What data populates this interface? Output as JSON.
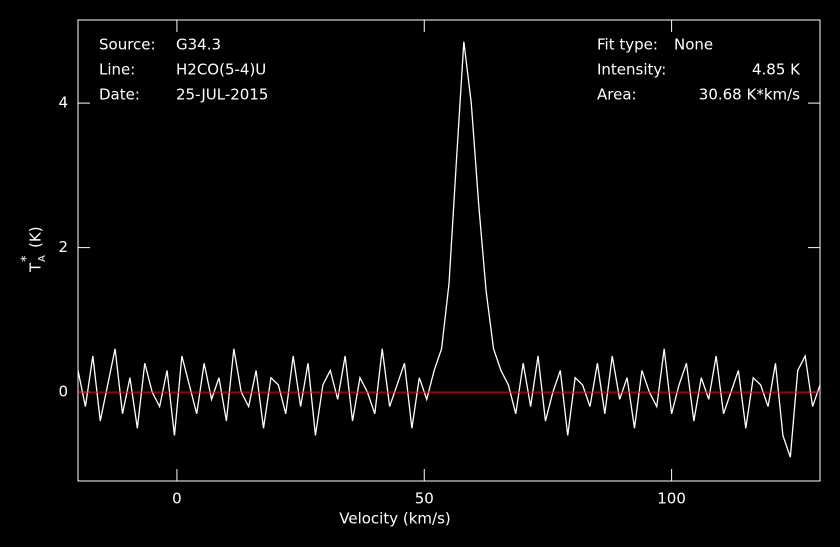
{
  "chart_data": {
    "type": "line",
    "xlabel": "Velocity (km/s)",
    "ylabel": {
      "symbol": "T",
      "sub": "A",
      "sup": "*",
      "unit": "(K)"
    },
    "annotations_left": [
      {
        "label": "Source:",
        "value": "G34.3"
      },
      {
        "label": "Line:",
        "value": "H2CO(5-4)U"
      },
      {
        "label": "Date:",
        "value": "25-JUL-2015"
      }
    ],
    "annotations_right": [
      {
        "label": "Fit type:",
        "value": "None"
      },
      {
        "label": "Intensity:",
        "value": "4.85 K"
      },
      {
        "label": "Area:",
        "value": "30.68 K*km/s"
      }
    ],
    "x": [
      -20,
      -18.5,
      -17,
      -15.5,
      -14,
      -12.5,
      -11,
      -9.5,
      -8,
      -6.5,
      -5,
      -3.5,
      -2,
      -0.5,
      1,
      2.5,
      4,
      5.5,
      7,
      8.5,
      10,
      11.5,
      13,
      14.5,
      16,
      17.5,
      19,
      20.5,
      22,
      23.5,
      25,
      26.5,
      28,
      29.5,
      31,
      32.5,
      34,
      35.5,
      37,
      38.5,
      40,
      41.5,
      43,
      44.5,
      46,
      47.5,
      49,
      50.5,
      52,
      53.5,
      55,
      56.5,
      58,
      59.5,
      61,
      62.5,
      64,
      65.5,
      67,
      68.5,
      70,
      71.5,
      73,
      74.5,
      76,
      77.5,
      79,
      80.5,
      82,
      83.5,
      85,
      86.5,
      88,
      89.5,
      91,
      92.5,
      94,
      95.5,
      97,
      98.5,
      100,
      101.5,
      103,
      104.5,
      106,
      107.5,
      109,
      110.5,
      112,
      113.5,
      115,
      116.5,
      118,
      119.5,
      121,
      122.5,
      124,
      125.5,
      127,
      128.5,
      130
    ],
    "series": [
      {
        "color": "#ffffff",
        "values": [
          0.3,
          -0.2,
          0.5,
          -0.4,
          0.1,
          0.6,
          -0.3,
          0.2,
          -0.5,
          0.4,
          0.0,
          -0.2,
          0.3,
          -0.6,
          0.5,
          0.1,
          -0.3,
          0.4,
          -0.1,
          0.2,
          -0.4,
          0.6,
          0.0,
          -0.2,
          0.3,
          -0.5,
          0.2,
          0.1,
          -0.3,
          0.5,
          -0.2,
          0.4,
          -0.6,
          0.1,
          0.3,
          -0.1,
          0.5,
          -0.4,
          0.2,
          0.0,
          -0.3,
          0.6,
          -0.2,
          0.1,
          0.4,
          -0.5,
          0.2,
          -0.1,
          0.3,
          0.6,
          1.5,
          3.2,
          4.85,
          4.0,
          2.6,
          1.4,
          0.6,
          0.3,
          0.1,
          -0.3,
          0.4,
          -0.2,
          0.5,
          -0.4,
          0.0,
          0.3,
          -0.6,
          0.2,
          0.1,
          -0.2,
          0.4,
          -0.3,
          0.5,
          -0.1,
          0.2,
          -0.5,
          0.3,
          0.0,
          -0.2,
          0.6,
          -0.3,
          0.1,
          0.4,
          -0.4,
          0.2,
          -0.1,
          0.5,
          -0.3,
          0.0,
          0.3,
          -0.5,
          0.2,
          0.1,
          -0.2,
          0.4,
          -0.6,
          -0.9,
          0.3,
          0.5,
          -0.2,
          0.1
        ]
      }
    ],
    "baseline": 0,
    "baseline_color": "#ff0000",
    "xlim": [
      -20,
      130
    ],
    "ylim": [
      -1.23,
      5.15
    ],
    "xticks": [
      0,
      50,
      100
    ],
    "yticks": [
      0,
      2,
      4
    ]
  }
}
